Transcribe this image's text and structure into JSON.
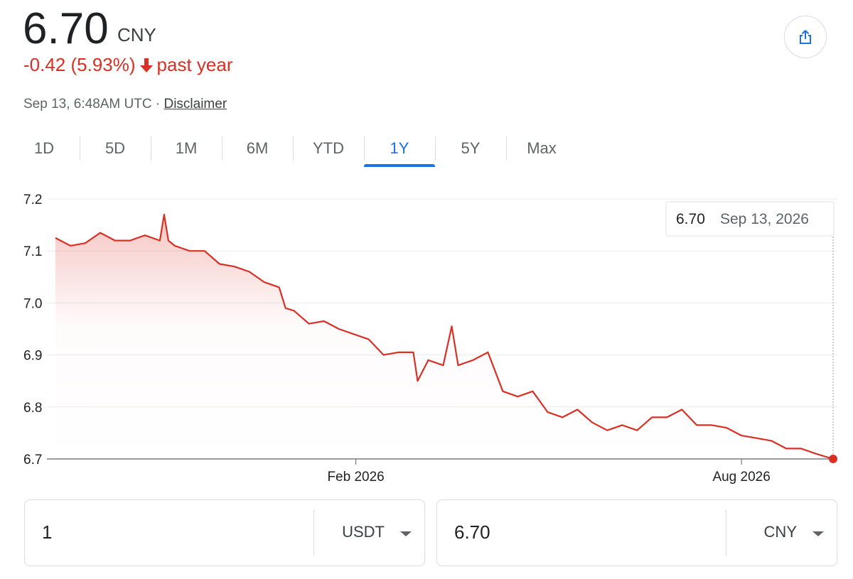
{
  "header": {
    "price": "6.70",
    "currency": "CNY",
    "change": "-0.42 (5.93%)",
    "period": "past year",
    "timestamp": "Sep 13, 6:48AM UTC",
    "separator": "·",
    "disclaimer": "Disclaimer"
  },
  "tabs": [
    {
      "label": "1D",
      "selected": false
    },
    {
      "label": "5D",
      "selected": false
    },
    {
      "label": "1M",
      "selected": false
    },
    {
      "label": "6M",
      "selected": false
    },
    {
      "label": "YTD",
      "selected": false
    },
    {
      "label": "1Y",
      "selected": true
    },
    {
      "label": "5Y",
      "selected": false
    },
    {
      "label": "Max",
      "selected": false
    }
  ],
  "chart_data": {
    "type": "line",
    "color": "#d93025",
    "grid": true,
    "x": [
      "2025-09-13",
      "2025-09-20",
      "2025-09-27",
      "2025-10-04",
      "2025-10-11",
      "2025-10-18",
      "2025-10-25",
      "2025-11-01",
      "2025-11-03",
      "2025-11-05",
      "2025-11-08",
      "2025-11-15",
      "2025-11-22",
      "2025-11-29",
      "2025-12-06",
      "2025-12-13",
      "2025-12-20",
      "2025-12-27",
      "2025-12-30",
      "2026-01-03",
      "2026-01-10",
      "2026-01-17",
      "2026-01-24",
      "2026-01-31",
      "2026-02-07",
      "2026-02-14",
      "2026-02-21",
      "2026-02-28",
      "2026-03-02",
      "2026-03-07",
      "2026-03-14",
      "2026-03-18",
      "2026-03-21",
      "2026-03-28",
      "2026-04-04",
      "2026-04-11",
      "2026-04-18",
      "2026-04-25",
      "2026-05-02",
      "2026-05-09",
      "2026-05-16",
      "2026-05-23",
      "2026-05-30",
      "2026-06-06",
      "2026-06-13",
      "2026-06-20",
      "2026-06-27",
      "2026-07-04",
      "2026-07-11",
      "2026-07-18",
      "2026-07-25",
      "2026-08-01",
      "2026-08-08",
      "2026-08-15",
      "2026-08-22",
      "2026-08-29",
      "2026-09-05",
      "2026-09-13"
    ],
    "values": [
      7.125,
      7.11,
      7.115,
      7.135,
      7.12,
      7.12,
      7.13,
      7.12,
      7.17,
      7.12,
      7.11,
      7.1,
      7.1,
      7.075,
      7.07,
      7.06,
      7.04,
      7.03,
      6.99,
      6.985,
      6.96,
      6.965,
      6.95,
      6.94,
      6.93,
      6.9,
      6.905,
      6.905,
      6.85,
      6.89,
      6.88,
      6.955,
      6.88,
      6.89,
      6.905,
      6.83,
      6.82,
      6.83,
      6.79,
      6.78,
      6.795,
      6.77,
      6.755,
      6.765,
      6.755,
      6.78,
      6.78,
      6.795,
      6.765,
      6.765,
      6.76,
      6.745,
      6.74,
      6.735,
      6.72,
      6.72,
      6.71,
      6.7
    ],
    "xlim": [
      "2025-09-13",
      "2026-09-13"
    ],
    "xticks": [
      {
        "value": "2026-02-01",
        "label": "Feb 2026"
      },
      {
        "value": "2026-08-01",
        "label": "Aug 2026"
      }
    ],
    "ylim": [
      6.7,
      7.2
    ],
    "yticks": [
      6.7,
      6.8,
      6.9,
      {
        "value": 7,
        "label": "7.0"
      },
      7.1,
      7.2
    ],
    "tooltip": {
      "value": "6.70",
      "date": "Sep 13, 2026"
    }
  },
  "converter": {
    "from_amount": "1",
    "from_currency": "USDT",
    "to_amount": "6.70",
    "to_currency": "CNY"
  }
}
